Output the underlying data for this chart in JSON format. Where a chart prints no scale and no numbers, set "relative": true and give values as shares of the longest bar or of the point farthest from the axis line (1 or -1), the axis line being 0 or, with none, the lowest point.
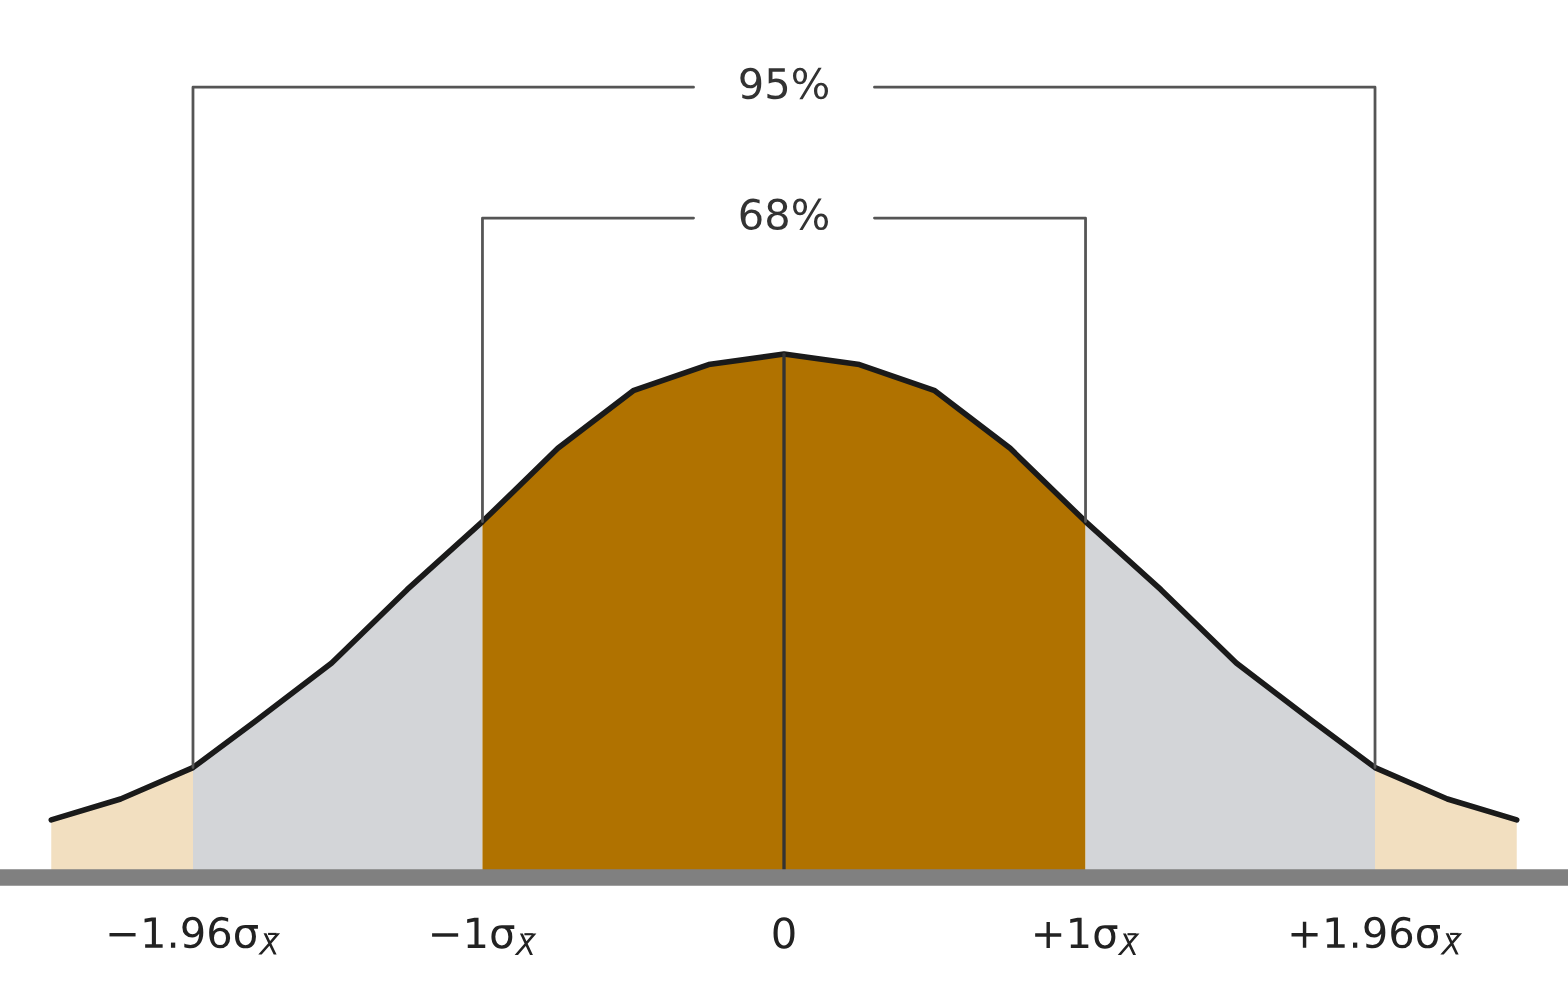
{
  "chart_data": {
    "type": "area",
    "relative": true,
    "xlim": [
      -2.6,
      2.6
    ],
    "xticks": [
      {
        "value": -1.96,
        "label": "−1.96σ$_{X̄}$"
      },
      {
        "value": -1,
        "label": "−1σ$_{X̄}$"
      },
      {
        "value": 0,
        "label": "0"
      },
      {
        "value": 1,
        "label": "+1σ$_{X̄}$"
      },
      {
        "value": 1.96,
        "label": "+1.96σ$_{X̄}$"
      }
    ],
    "series": [
      {
        "color": "#f2dfc0",
        "x": [
          -2.43,
          -2.2,
          -1.96
        ],
        "values": [
          0.11,
          0.15,
          0.21
        ]
      },
      {
        "color": "#d3d5d8",
        "x": [
          -1.96,
          -1.75,
          -1.5,
          -1.25,
          -1
        ],
        "values": [
          0.21,
          0.3,
          0.41,
          0.55,
          0.68
        ]
      },
      {
        "color": "#b07200",
        "x": [
          -1,
          -0.75,
          -0.5,
          -0.25,
          0,
          0.25,
          0.5,
          0.75,
          1
        ],
        "values": [
          0.68,
          0.82,
          0.93,
          0.98,
          1,
          0.98,
          0.93,
          0.82,
          0.68
        ]
      },
      {
        "color": "#d3d5d8",
        "x": [
          1,
          1.25,
          1.5,
          1.75,
          1.96
        ],
        "values": [
          0.68,
          0.55,
          0.41,
          0.3,
          0.21
        ]
      },
      {
        "color": "#f2dfc0",
        "x": [
          1.96,
          2.2,
          2.43
        ],
        "values": [
          0.21,
          0.15,
          0.11
        ]
      },
      {
        "type": "line",
        "color": "#1a1a1a",
        "x": [
          -2.43,
          -2.2,
          -1.96,
          -1.75,
          -1.5,
          -1.25,
          -1,
          -0.75,
          -0.5,
          -0.25,
          0,
          0.25,
          0.5,
          0.75,
          1,
          1.25,
          1.5,
          1.75,
          1.96,
          2.2,
          2.43
        ],
        "values": [
          0.11,
          0.15,
          0.21,
          0.3,
          0.41,
          0.55,
          0.68,
          0.82,
          0.93,
          0.98,
          1,
          0.98,
          0.93,
          0.82,
          0.68,
          0.55,
          0.41,
          0.3,
          0.21,
          0.15,
          0.11
        ]
      }
    ],
    "ref_lines": [
      {
        "axis": "x",
        "value": 0,
        "color": "#333333"
      }
    ],
    "annotations": [
      "95%",
      "68%"
    ]
  }
}
